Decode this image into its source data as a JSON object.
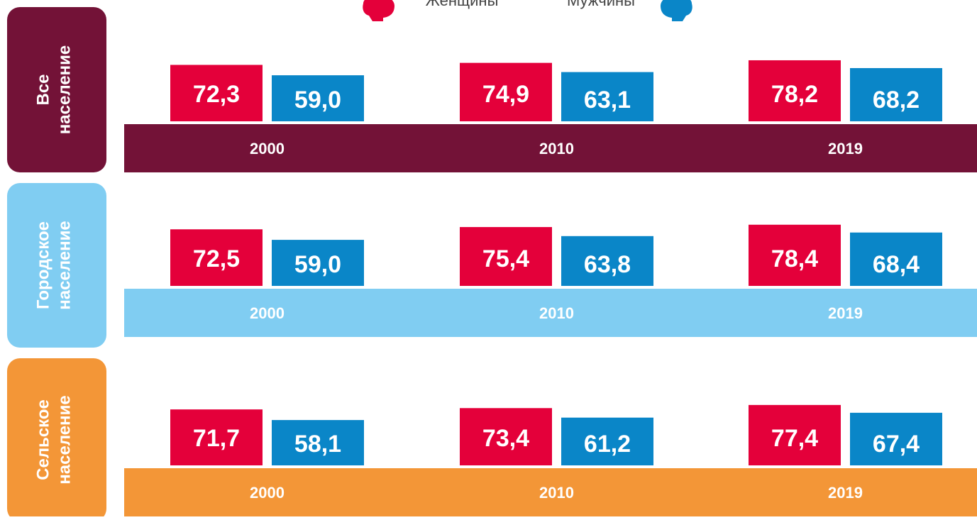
{
  "chart_data": [
    {
      "type": "bar",
      "title": [
        "Все",
        "население"
      ],
      "color": "#731237",
      "categories": [
        "2000",
        "2010",
        "2019"
      ],
      "series": [
        {
          "name": "Женщины",
          "color": "#e4003a",
          "values": [
            72.3,
            74.9,
            78.2
          ],
          "value_labels": [
            "72,3",
            "74,9",
            "78,2"
          ]
        },
        {
          "name": "Мужчины",
          "color": "#0a86c8",
          "values": [
            59.0,
            63.1,
            68.2
          ],
          "value_labels": [
            "59,0",
            "63,1",
            "68,2"
          ]
        }
      ]
    },
    {
      "type": "bar",
      "title": [
        "Городское",
        "население"
      ],
      "color": "#80cdf2",
      "categories": [
        "2000",
        "2010",
        "2019"
      ],
      "series": [
        {
          "name": "Женщины",
          "color": "#e4003a",
          "values": [
            72.5,
            75.4,
            78.4
          ],
          "value_labels": [
            "72,5",
            "75,4",
            "78,4"
          ]
        },
        {
          "name": "Мужчины",
          "color": "#0a86c8",
          "values": [
            59.0,
            63.8,
            68.4
          ],
          "value_labels": [
            "59,0",
            "63,8",
            "68,4"
          ]
        }
      ]
    },
    {
      "type": "bar",
      "title": [
        "Сельское",
        "население"
      ],
      "color": "#f39637",
      "categories": [
        "2000",
        "2010",
        "2019"
      ],
      "series": [
        {
          "name": "Женщины",
          "color": "#e4003a",
          "values": [
            71.7,
            73.4,
            77.4
          ],
          "value_labels": [
            "71,7",
            "73,4",
            "77,4"
          ]
        },
        {
          "name": "Мужчины",
          "color": "#0a86c8",
          "values": [
            58.1,
            61.2,
            67.4
          ],
          "value_labels": [
            "58,1",
            "61,2",
            "67,4"
          ]
        }
      ]
    }
  ]
}
